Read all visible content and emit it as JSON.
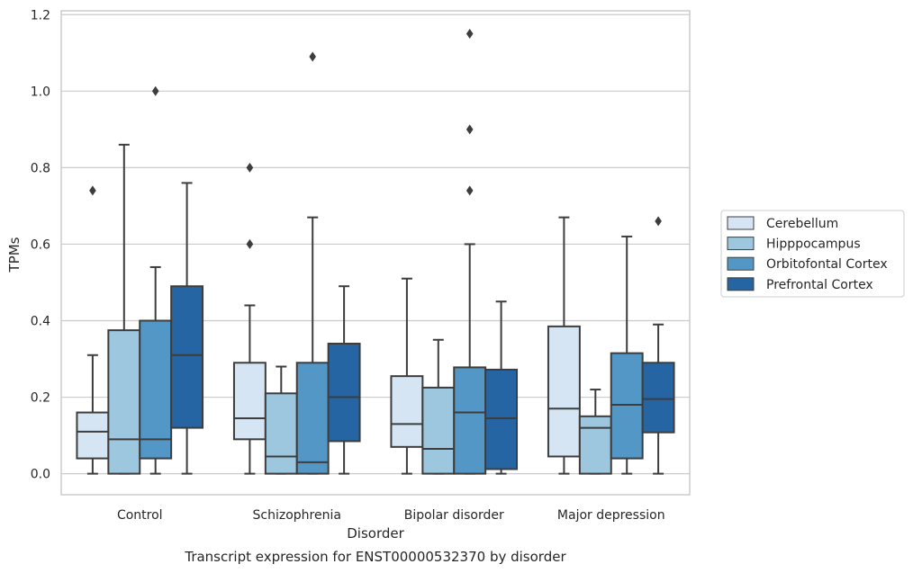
{
  "chart_data": {
    "type": "boxplot",
    "title": "",
    "caption": "Transcript expression for ENST00000532370 by disorder",
    "xlabel": "Disorder",
    "ylabel": "TPMs",
    "ylim": [
      -0.055,
      1.21
    ],
    "yticks": [
      0.0,
      0.2,
      0.4,
      0.6,
      0.8,
      1.0,
      1.2
    ],
    "ytick_labels": [
      "0.0",
      "0.2",
      "0.4",
      "0.6",
      "0.8",
      "1.0",
      "1.2"
    ],
    "grid": "horizontal",
    "legend_position": "right",
    "categories": [
      "Control",
      "Schizophrenia",
      "Bipolar disorder",
      "Major depression"
    ],
    "series": [
      {
        "name": "Cerebellum",
        "color": "#d6e5f3",
        "boxes": [
          {
            "whislo": 0.0,
            "q1": 0.04,
            "med": 0.11,
            "q3": 0.16,
            "whishi": 0.31,
            "fliers": [
              0.74
            ]
          },
          {
            "whislo": 0.0,
            "q1": 0.09,
            "med": 0.145,
            "q3": 0.29,
            "whishi": 0.44,
            "fliers": [
              0.6,
              0.8
            ]
          },
          {
            "whislo": 0.0,
            "q1": 0.07,
            "med": 0.13,
            "q3": 0.255,
            "whishi": 0.51,
            "fliers": []
          },
          {
            "whislo": 0.0,
            "q1": 0.045,
            "med": 0.17,
            "q3": 0.385,
            "whishi": 0.67,
            "fliers": []
          }
        ]
      },
      {
        "name": "Hipppocampus",
        "color": "#9dc7df",
        "boxes": [
          {
            "whislo": 0.0,
            "q1": 0.0,
            "med": 0.09,
            "q3": 0.375,
            "whishi": 0.86,
            "fliers": []
          },
          {
            "whislo": 0.0,
            "q1": 0.0,
            "med": 0.045,
            "q3": 0.21,
            "whishi": 0.28,
            "fliers": []
          },
          {
            "whislo": 0.0,
            "q1": 0.0,
            "med": 0.065,
            "q3": 0.225,
            "whishi": 0.35,
            "fliers": []
          },
          {
            "whislo": 0.0,
            "q1": 0.0,
            "med": 0.12,
            "q3": 0.15,
            "whishi": 0.22,
            "fliers": []
          }
        ]
      },
      {
        "name": "Orbitofontal Cortex",
        "color": "#5397c7",
        "boxes": [
          {
            "whislo": 0.0,
            "q1": 0.04,
            "med": 0.09,
            "q3": 0.4,
            "whishi": 0.54,
            "fliers": [
              1.0
            ]
          },
          {
            "whislo": 0.0,
            "q1": 0.0,
            "med": 0.03,
            "q3": 0.29,
            "whishi": 0.67,
            "fliers": [
              1.09
            ]
          },
          {
            "whislo": 0.0,
            "q1": 0.0,
            "med": 0.16,
            "q3": 0.278,
            "whishi": 0.6,
            "fliers": [
              0.74,
              0.9,
              1.15
            ]
          },
          {
            "whislo": 0.0,
            "q1": 0.04,
            "med": 0.18,
            "q3": 0.315,
            "whishi": 0.62,
            "fliers": []
          }
        ]
      },
      {
        "name": "Prefrontal Cortex",
        "color": "#2565a3",
        "boxes": [
          {
            "whislo": 0.0,
            "q1": 0.12,
            "med": 0.31,
            "q3": 0.49,
            "whishi": 0.76,
            "fliers": []
          },
          {
            "whislo": 0.0,
            "q1": 0.085,
            "med": 0.2,
            "q3": 0.34,
            "whishi": 0.49,
            "fliers": []
          },
          {
            "whislo": 0.0,
            "q1": 0.012,
            "med": 0.145,
            "q3": 0.272,
            "whishi": 0.45,
            "fliers": []
          },
          {
            "whislo": 0.0,
            "q1": 0.108,
            "med": 0.195,
            "q3": 0.29,
            "whishi": 0.39,
            "fliers": [
              0.66
            ]
          }
        ]
      }
    ]
  }
}
